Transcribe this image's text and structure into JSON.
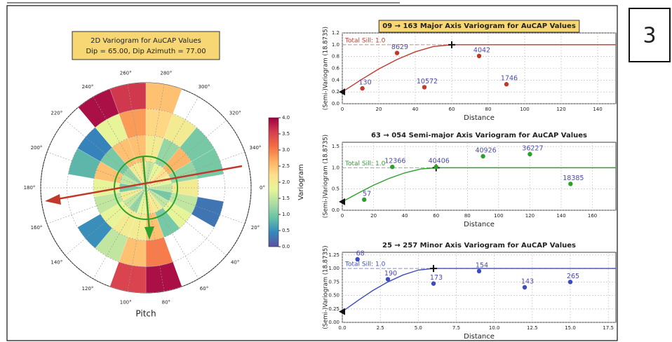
{
  "panel_label": "3",
  "chart_data": [
    {
      "type": "polar_heatmap",
      "title": "2D Variogram for AuCAP Values",
      "subtitle": "Dip = 65.00, Dip Azimuth = 77.00",
      "xlabel": "Pitch",
      "angle_ticks": [
        {
          "value": 0,
          "label": "0°"
        },
        {
          "value": 20,
          "label": "20°"
        },
        {
          "value": 40,
          "label": "40°"
        },
        {
          "value": 60,
          "label": "60°"
        },
        {
          "value": 80,
          "label": "80°"
        },
        {
          "value": 100,
          "label": "100°"
        },
        {
          "value": 120,
          "label": "120°"
        },
        {
          "value": 140,
          "label": "140°"
        },
        {
          "value": 160,
          "label": "160°"
        },
        {
          "value": 180,
          "label": "180°"
        },
        {
          "value": 200,
          "label": "200°"
        },
        {
          "value": 220,
          "label": "220°"
        },
        {
          "value": 240,
          "label": "240°"
        },
        {
          "value": 260,
          "label": "260°"
        },
        {
          "value": 280,
          "label": "280°"
        },
        {
          "value": 300,
          "label": "300°"
        },
        {
          "value": 320,
          "label": "320°"
        },
        {
          "value": 340,
          "label": "340°"
        }
      ],
      "cells": [
        [
          1.5,
          2.0
        ],
        [
          1.0,
          1.5,
          0.3
        ],
        [
          1.5,
          1.8
        ],
        [
          2.0,
          1.0
        ],
        [
          2.2,
          2.5,
          3.0,
          3.9
        ],
        [
          1.8,
          2.0,
          2.5,
          3.5
        ],
        [
          1.2,
          2.0,
          1.5
        ],
        [
          1.5,
          1.8,
          0.5
        ],
        [
          2.0,
          1.5
        ],
        [
          1.0,
          1.8
        ],
        [
          1.5,
          2.5,
          0.8
        ],
        [
          1.2,
          1.0,
          0.4
        ],
        [
          2.0,
          2.5,
          1.8,
          3.9
        ],
        [
          2.2,
          2.5,
          2.8,
          3.6
        ],
        [
          1.5,
          2.0,
          2.3,
          2.5
        ],
        [
          1.8,
          1.2,
          2.0
        ],
        [
          2.2,
          2.6,
          1.0
        ],
        [
          1.8,
          1.2,
          1.0
        ]
      ],
      "colormap": [
        "#5e4fa2",
        "#3288bd",
        "#66c2a5",
        "#abdda4",
        "#e6f598",
        "#fee08b",
        "#fdae61",
        "#f46d43",
        "#d53e4f",
        "#9e0142"
      ],
      "colorbar": {
        "label": "Variogram",
        "lim": [
          0,
          4
        ],
        "ticks": [
          {
            "value": 0,
            "label": "0.0"
          },
          0.5,
          {
            "value": 1,
            "label": "1.0"
          },
          1.5,
          {
            "value": 2,
            "label": "2.0"
          },
          2.5,
          {
            "value": 3,
            "label": "3.0"
          },
          3.5,
          {
            "value": 4,
            "label": "4.0"
          }
        ]
      }
    },
    {
      "type": "scatter",
      "title": "09 → 163 Major Axis Variogram for AuCAP Values",
      "title_highlight": true,
      "xlabel": "Distance",
      "ylabel": "(Semi-)Variogram (18.8735)",
      "color": "#c0392b",
      "grid": true,
      "xlim": [
        0,
        150
      ],
      "ylim": [
        0,
        1.2
      ],
      "xticks": [
        0,
        20,
        40,
        60,
        80,
        100,
        120,
        140
      ],
      "yticks": [
        {
          "value": 0,
          "label": "0.0"
        },
        0.2,
        0.4,
        0.6,
        0.8,
        {
          "value": 1,
          "label": "1.0"
        },
        1.2
      ],
      "sill": 1.0,
      "sill_label": "Total Sill: 1.0",
      "points": {
        "x": [
          11,
          30,
          45,
          75,
          90
        ],
        "values": [
          0.26,
          0.86,
          0.28,
          0.81,
          0.33
        ],
        "counts": [
          130,
          8629,
          10572,
          4042,
          1746
        ]
      },
      "model": {
        "x": [
          0,
          10,
          20,
          30,
          40,
          50,
          60,
          150
        ],
        "values": [
          0.2,
          0.4,
          0.59,
          0.75,
          0.88,
          0.97,
          1.0,
          1.0
        ]
      }
    },
    {
      "type": "scatter",
      "title": "63 → 054 Semi-major Axis Variogram for AuCAP Values",
      "title_highlight": false,
      "xlabel": "Distance",
      "ylabel": "(Semi-)Variogram (18.8735)",
      "color": "#2ca02c",
      "grid": true,
      "xlim": [
        0,
        175
      ],
      "ylim": [
        0,
        1.6
      ],
      "xticks": [
        0,
        20,
        40,
        60,
        80,
        100,
        120,
        140,
        160
      ],
      "yticks": [
        {
          "value": 0,
          "label": "0.0"
        },
        0.5,
        {
          "value": 1,
          "label": "1.0"
        },
        1.5
      ],
      "sill": 1.0,
      "sill_label": "Total Sill: 1.0",
      "points": {
        "x": [
          14,
          32,
          60,
          90,
          120,
          146
        ],
        "values": [
          0.25,
          1.02,
          1.02,
          1.27,
          1.32,
          0.62
        ],
        "counts": [
          57,
          12366,
          40406,
          40926,
          36227,
          18385
        ]
      },
      "model": {
        "x": [
          0,
          10,
          20,
          30,
          40,
          50,
          60,
          175
        ],
        "values": [
          0.2,
          0.4,
          0.59,
          0.75,
          0.88,
          0.97,
          1.0,
          1.0
        ]
      }
    },
    {
      "type": "scatter",
      "title": "25 → 257 Minor Axis Variogram for AuCAP Values",
      "title_highlight": false,
      "xlabel": "Distance",
      "ylabel": "(Semi-)Variogram (18.8735)",
      "color": "#3b4cc0",
      "grid": true,
      "xlim": [
        0,
        18
      ],
      "ylim": [
        0,
        1.3
      ],
      "xticks": [
        {
          "value": 0,
          "label": "0.0"
        },
        2.5,
        {
          "value": 5,
          "label": "5.0"
        },
        7.5,
        {
          "value": 10,
          "label": "10.0"
        },
        12.5,
        {
          "value": 15,
          "label": "15.0"
        },
        17.5
      ],
      "yticks": [
        {
          "value": 0,
          "label": "0.00"
        },
        0.25,
        {
          "value": 0.5,
          "label": "0.50"
        },
        0.75,
        {
          "value": 1,
          "label": "1.00"
        },
        1.25
      ],
      "sill": 1.0,
      "sill_label": "Total Sill: 1.0",
      "points": {
        "x": [
          1,
          3,
          6,
          9,
          12,
          15
        ],
        "values": [
          1.17,
          0.8,
          0.72,
          0.95,
          0.65,
          0.75
        ],
        "counts": [
          68,
          190,
          173,
          154,
          143,
          265
        ]
      },
      "model": {
        "x": [
          0,
          1,
          2,
          3,
          4,
          5,
          6,
          18
        ],
        "values": [
          0.2,
          0.4,
          0.59,
          0.75,
          0.88,
          0.97,
          1.0,
          1.0
        ]
      }
    }
  ]
}
